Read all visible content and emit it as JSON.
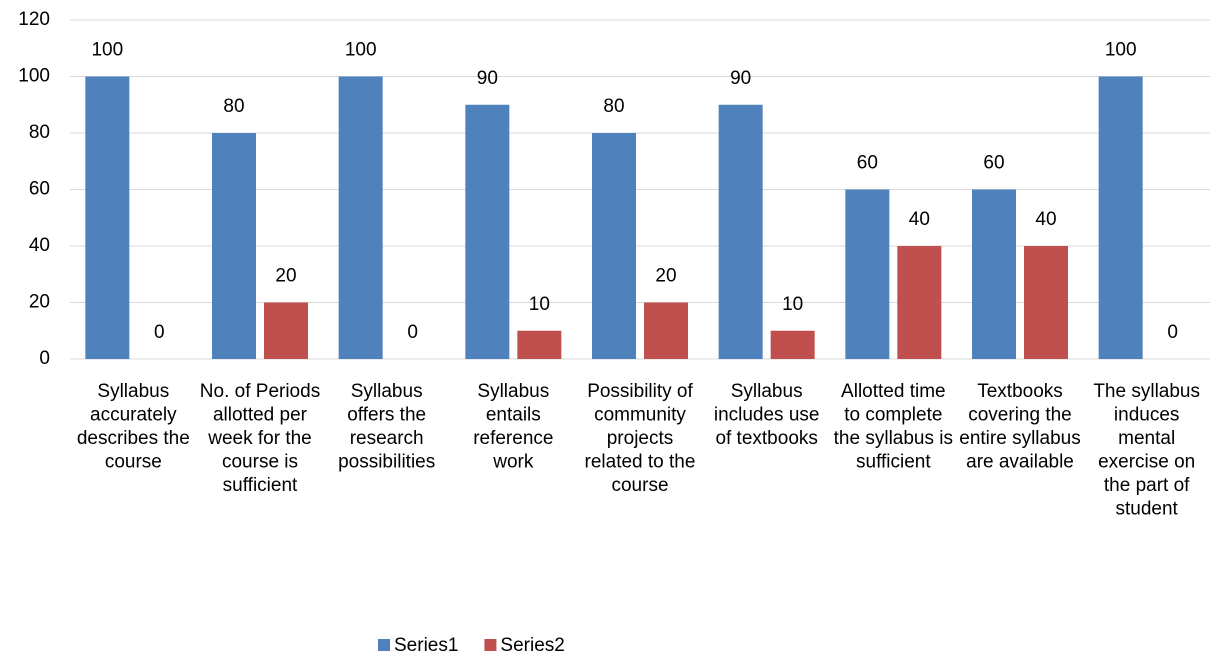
{
  "chart_data": {
    "type": "bar",
    "categories": [
      "Syllabus accurately describes the course",
      "No. of Periods allotted per week for the course is sufficient",
      "Syllabus offers the research possibilities",
      "Syllabus entails reference work",
      "Possibility of community projects related to the course",
      "Syllabus includes use of textbooks",
      "Allotted time to complete the syllabus is sufficient",
      "Textbooks covering the entire syllabus are available",
      "The syllabus induces mental exercise on the part of student"
    ],
    "series": [
      {
        "name": "Series1",
        "color": "#4f81bd",
        "values": [
          100,
          80,
          100,
          90,
          80,
          90,
          60,
          60,
          100
        ]
      },
      {
        "name": "Series2",
        "color": "#c0504d",
        "values": [
          0,
          20,
          0,
          10,
          20,
          10,
          40,
          40,
          0
        ]
      }
    ],
    "ylim": [
      0,
      120
    ],
    "yticks": [
      0,
      20,
      40,
      60,
      80,
      100,
      120
    ],
    "grid": true,
    "data_labels": true,
    "legend": "bottom"
  }
}
